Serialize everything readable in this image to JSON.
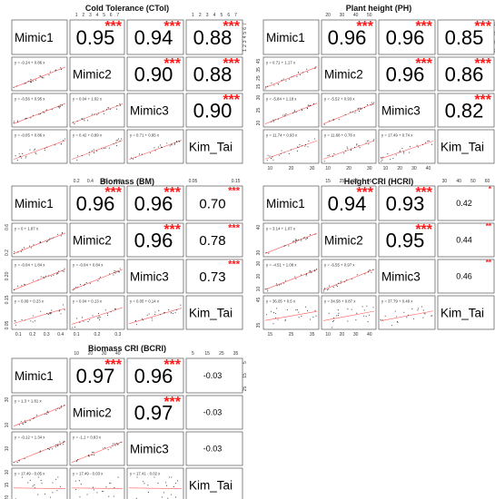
{
  "chart_data": [
    {
      "type": "scatter_matrix",
      "title": "Cold Tolerance (CTol)",
      "variables": [
        "Mimic1",
        "Mimic2",
        "Mimic3",
        "Kim_Tai"
      ],
      "correlations": [
        {
          "pair": [
            "Mimic1",
            "Mimic2"
          ],
          "r": "0.95",
          "sig": "***"
        },
        {
          "pair": [
            "Mimic1",
            "Mimic3"
          ],
          "r": "0.94",
          "sig": "***"
        },
        {
          "pair": [
            "Mimic1",
            "Kim_Tai"
          ],
          "r": "0.88",
          "sig": "***"
        },
        {
          "pair": [
            "Mimic2",
            "Mimic3"
          ],
          "r": "0.90",
          "sig": "***"
        },
        {
          "pair": [
            "Mimic2",
            "Kim_Tai"
          ],
          "r": "0.88",
          "sig": "***"
        },
        {
          "pair": [
            "Mimic3",
            "Kim_Tai"
          ],
          "r": "0.90",
          "sig": "***"
        }
      ],
      "equations": [
        "y = -0.24 + 0.86 x",
        "y = -0.56 + 0.95 x",
        "y = 0.04 + 1.02 x",
        "y = -0.05 + 0.86 x",
        "y = 0.42 + 0.89 x",
        "y = 0.71 + 0.95 x"
      ],
      "top_ticks": [
        [
          "1",
          "2",
          "3",
          "4",
          "5",
          "6",
          "7"
        ],
        [
          "1",
          "2",
          "3",
          "4",
          "5",
          "6",
          "7"
        ]
      ],
      "right_ticks": [
        [
          "1",
          "2",
          "3",
          "4",
          "5",
          "6",
          "7"
        ]
      ],
      "left_ticks": [],
      "bottom_ticks": []
    },
    {
      "type": "scatter_matrix",
      "title": "Plant height (PH)",
      "variables": [
        "Mimic1",
        "Mimic2",
        "Mimic3",
        "Kim_Tai"
      ],
      "correlations": [
        {
          "pair": [
            "Mimic1",
            "Mimic2"
          ],
          "r": "0.96",
          "sig": "***"
        },
        {
          "pair": [
            "Mimic1",
            "Mimic3"
          ],
          "r": "0.96",
          "sig": "***"
        },
        {
          "pair": [
            "Mimic1",
            "Kim_Tai"
          ],
          "r": "0.85",
          "sig": "***"
        },
        {
          "pair": [
            "Mimic2",
            "Mimic3"
          ],
          "r": "0.96",
          "sig": "***"
        },
        {
          "pair": [
            "Mimic2",
            "Kim_Tai"
          ],
          "r": "0.86",
          "sig": "***"
        },
        {
          "pair": [
            "Mimic3",
            "Kim_Tai"
          ],
          "r": "0.82",
          "sig": "***"
        }
      ],
      "equations": [
        "y = 0.71 + 1.17 x",
        "y = -5.84 + 1.18 x",
        "y = -5.52 + 0.93 x",
        "y = 11.74 + 0.93 x",
        "y = 11.68 + 0.78 x",
        "y = 17.49 + 0.74 x"
      ],
      "top_ticks": [
        [
          "20",
          "30",
          "40",
          "50"
        ]
      ],
      "right_ticks": [
        [
          "15",
          "25",
          "35",
          "45"
        ]
      ],
      "left_ticks": [
        [
          "15",
          "25",
          "35",
          "45"
        ],
        [
          "20",
          "25",
          "30"
        ]
      ],
      "bottom_ticks": [
        [
          "10",
          "20",
          "30"
        ],
        [
          "10",
          "20",
          "30"
        ],
        [
          "10",
          "20",
          "30",
          "40"
        ]
      ]
    },
    {
      "type": "scatter_matrix",
      "title": "Biomass (BM)",
      "variables": [
        "Mimic1",
        "Mimic2",
        "Mimic3",
        "Kim_Tai"
      ],
      "correlations": [
        {
          "pair": [
            "Mimic1",
            "Mimic2"
          ],
          "r": "0.96",
          "sig": "***"
        },
        {
          "pair": [
            "Mimic1",
            "Mimic3"
          ],
          "r": "0.96",
          "sig": "***"
        },
        {
          "pair": [
            "Mimic1",
            "Kim_Tai"
          ],
          "r": "0.70",
          "sig": "***"
        },
        {
          "pair": [
            "Mimic2",
            "Mimic3"
          ],
          "r": "0.96",
          "sig": "***"
        },
        {
          "pair": [
            "Mimic2",
            "Kim_Tai"
          ],
          "r": "0.78",
          "sig": "***"
        },
        {
          "pair": [
            "Mimic3",
            "Kim_Tai"
          ],
          "r": "0.73",
          "sig": "***"
        }
      ],
      "equations": [
        "y = 0 + 1.87 x",
        "y = -0.04 + 1.84 x",
        "y = -0.04 + 0.84 x",
        "y = 0.09 + 0.23 x",
        "y = 0.04 + 0.13 x",
        "y = 0.05 + 0.14 x"
      ],
      "top_ticks": [
        [
          "0.2",
          "0.4",
          "0.6",
          "0.8"
        ],
        [
          "0.05",
          "0.15"
        ]
      ],
      "right_ticks": [],
      "left_ticks": [
        [
          "0.2",
          "0.6"
        ],
        [
          "0.20"
        ],
        [
          "0.05",
          "0.15"
        ]
      ],
      "bottom_ticks": [
        [
          "0.1",
          "0.2",
          "0.3",
          "0.4"
        ],
        [
          "0.1",
          "0.2",
          "0.3"
        ]
      ]
    },
    {
      "type": "scatter_matrix",
      "title": "Height CRI (HCRI)",
      "variables": [
        "Mimic1",
        "Mimic2",
        "Mimic3",
        "Kim_Tai"
      ],
      "correlations": [
        {
          "pair": [
            "Mimic1",
            "Mimic2"
          ],
          "r": "0.94",
          "sig": "***"
        },
        {
          "pair": [
            "Mimic1",
            "Mimic3"
          ],
          "r": "0.93",
          "sig": "***"
        },
        {
          "pair": [
            "Mimic1",
            "Kim_Tai"
          ],
          "r": "0.42",
          "sig": "*"
        },
        {
          "pair": [
            "Mimic2",
            "Mimic3"
          ],
          "r": "0.95",
          "sig": "***"
        },
        {
          "pair": [
            "Mimic2",
            "Kim_Tai"
          ],
          "r": "0.44",
          "sig": "**"
        },
        {
          "pair": [
            "Mimic3",
            "Kim_Tai"
          ],
          "r": "0.46",
          "sig": "**"
        }
      ],
      "equations": [
        "y = 3.14 + 1.07 x",
        "y = -4.51 + 1.08 x",
        "y = -6.55 + 0.97 x",
        "y = 36.05 + 0.5 x",
        "y = 34.58 + 0.87 x",
        "y = 37.79 + 0.48 x"
      ],
      "top_ticks": [
        [
          "15",
          "25",
          "35",
          "45"
        ],
        [
          "30",
          "40",
          "50",
          "60"
        ]
      ],
      "right_ticks": [],
      "left_ticks": [
        [
          "30",
          "40"
        ],
        [
          "10",
          "20",
          "30"
        ],
        [
          "35",
          "45"
        ]
      ],
      "bottom_ticks": [
        [
          "15",
          "25",
          "35"
        ],
        [
          "10",
          "20",
          "30",
          "40"
        ]
      ]
    },
    {
      "type": "scatter_matrix",
      "title": "Biomass CRI (BCRI)",
      "variables": [
        "Mimic1",
        "Mimic2",
        "Mimic3",
        "Kim_Tai"
      ],
      "correlations": [
        {
          "pair": [
            "Mimic1",
            "Mimic2"
          ],
          "r": "0.97",
          "sig": "***"
        },
        {
          "pair": [
            "Mimic1",
            "Mimic3"
          ],
          "r": "0.96",
          "sig": "***"
        },
        {
          "pair": [
            "Mimic1",
            "Kim_Tai"
          ],
          "r": "-0.03",
          "sig": ""
        },
        {
          "pair": [
            "Mimic2",
            "Mimic3"
          ],
          "r": "0.97",
          "sig": "***"
        },
        {
          "pair": [
            "Mimic2",
            "Kim_Tai"
          ],
          "r": "-0.03",
          "sig": ""
        },
        {
          "pair": [
            "Mimic3",
            "Kim_Tai"
          ],
          "r": "-0.03",
          "sig": ""
        }
      ],
      "equations": [
        "y = 1.3 + 1.81 x",
        "y = -0.12 + 1.34 x",
        "y = -1.1 + 0.83 x",
        "y = 17.49 - 0.05 x",
        "y = 17.49 - 0.03 x",
        "y = 17.41 - 0.02 x"
      ],
      "top_ticks": [
        [
          "10",
          "20",
          "30",
          "40"
        ],
        [
          "5",
          "15",
          "25",
          "35"
        ]
      ],
      "right_ticks": [
        [
          "25",
          "15",
          "5"
        ]
      ],
      "left_ticks": [
        [
          "10",
          "30"
        ],
        [
          "10"
        ],
        [
          "20",
          "15",
          "10"
        ]
      ],
      "bottom_ticks": [
        [
          "0",
          "5",
          "10",
          "20"
        ],
        [
          "30"
        ]
      ]
    }
  ]
}
